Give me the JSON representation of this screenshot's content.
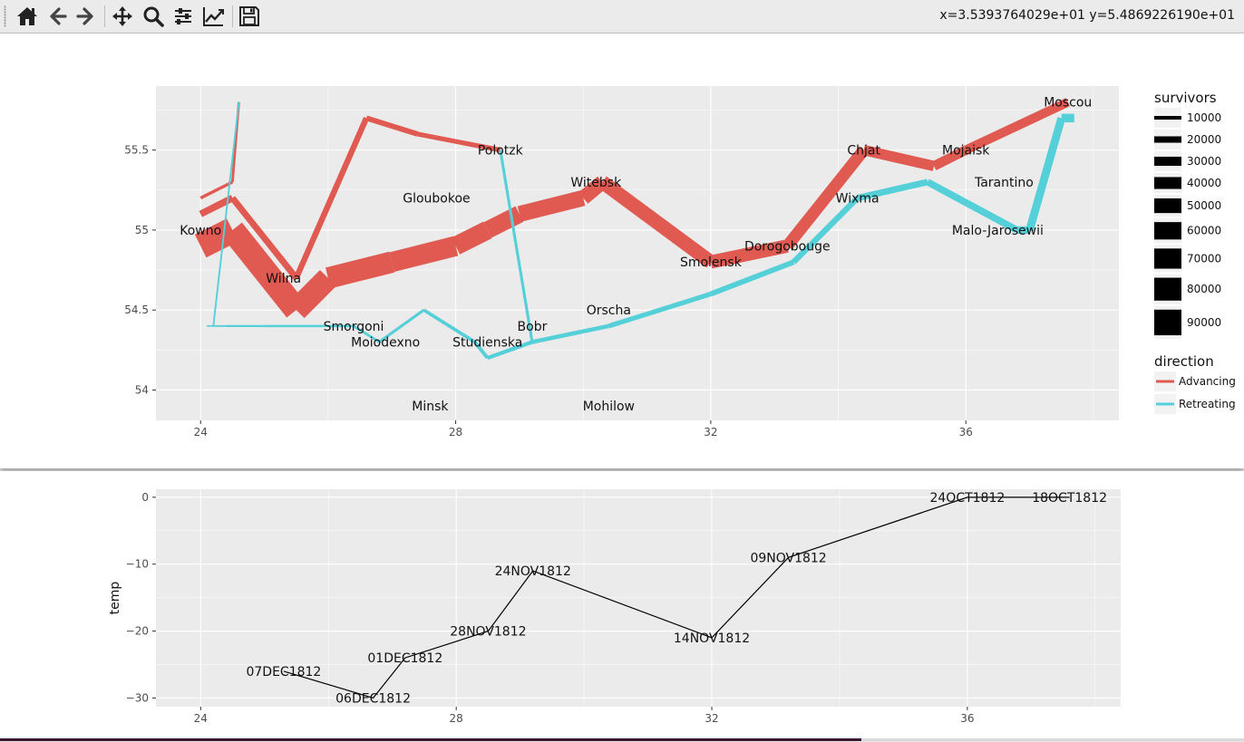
{
  "toolbar": {
    "coords": "x=3.5393764029e+01 y=5.4869226190e+01",
    "buttons": [
      {
        "name": "home-icon",
        "tooltip": "Home"
      },
      {
        "name": "back-icon",
        "tooltip": "Back"
      },
      {
        "name": "forward-icon",
        "tooltip": "Forward"
      },
      {
        "name": "pan-icon",
        "tooltip": "Pan"
      },
      {
        "name": "zoom-icon",
        "tooltip": "Zoom"
      },
      {
        "name": "configure-subplots-icon",
        "tooltip": "Configure subplots"
      },
      {
        "name": "edit-axis-icon",
        "tooltip": "Edit axis"
      },
      {
        "name": "save-icon",
        "tooltip": "Save"
      }
    ]
  },
  "chart_data": [
    {
      "type": "line",
      "title": "",
      "xlabel": "",
      "ylabel": "",
      "xlim": [
        23.3,
        38.4
      ],
      "ylim": [
        53.81,
        55.9
      ],
      "xticks": [
        24,
        28,
        32,
        36
      ],
      "xtick_labels": [
        "24",
        "28",
        "32",
        "36"
      ],
      "yticks": [
        54,
        54.5,
        55,
        55.5
      ],
      "ytick_labels": [
        "54",
        "54.5",
        "55",
        "55.5"
      ],
      "grid": true,
      "legend": {
        "placement": "right",
        "survivors_title": "survivors",
        "survivors": [
          {
            "label": "10000",
            "value": 10000
          },
          {
            "label": "20000",
            "value": 20000
          },
          {
            "label": "30000",
            "value": 30000
          },
          {
            "label": "40000",
            "value": 40000
          },
          {
            "label": "50000",
            "value": 50000
          },
          {
            "label": "60000",
            "value": 60000
          },
          {
            "label": "70000",
            "value": 70000
          },
          {
            "label": "80000",
            "value": 80000
          },
          {
            "label": "90000",
            "value": 90000
          }
        ],
        "direction_title": "direction",
        "direction": [
          {
            "label": "Advancing",
            "color": "#e05a52"
          },
          {
            "label": "Retreating",
            "color": "#55d0d8"
          }
        ]
      },
      "series": [
        {
          "direction": "Advancing",
          "color": "#e05a52",
          "points": [
            [
              24.0,
              54.9,
              90000
            ],
            [
              24.5,
              55.0,
              85000
            ],
            [
              25.5,
              54.5,
              80000
            ],
            [
              26.0,
              54.7,
              75000
            ],
            [
              27.0,
              54.8,
              70000
            ],
            [
              28.0,
              54.9,
              65000
            ],
            [
              28.5,
              55.0,
              60000
            ],
            [
              29.0,
              55.1,
              55000
            ],
            [
              30.0,
              55.2,
              50000
            ],
            [
              30.3,
              55.3,
              48000
            ],
            [
              32.0,
              54.8,
              45000
            ],
            [
              33.2,
              54.9,
              40000
            ],
            [
              34.4,
              55.5,
              35000
            ],
            [
              35.5,
              55.4,
              32000
            ],
            [
              36.0,
              55.5,
              30000
            ],
            [
              37.6,
              55.8,
              28000
            ]
          ]
        },
        {
          "direction": "Retreating",
          "color": "#55d0d8",
          "points": [
            [
              37.7,
              55.7,
              28000
            ],
            [
              37.5,
              55.7,
              26000
            ],
            [
              37.0,
              55.0,
              24000
            ],
            [
              36.8,
              55.0,
              22000
            ],
            [
              35.4,
              55.3,
              20000
            ],
            [
              34.3,
              55.2,
              18000
            ],
            [
              33.3,
              54.8,
              16000
            ],
            [
              32.0,
              54.6,
              14000
            ],
            [
              30.4,
              54.4,
              12000
            ],
            [
              29.2,
              54.3,
              11000
            ],
            [
              28.5,
              54.2,
              10000
            ],
            [
              28.3,
              54.3,
              9000
            ],
            [
              27.5,
              54.5,
              7000
            ],
            [
              26.8,
              54.3,
              6000
            ],
            [
              26.4,
              54.4,
              5000
            ],
            [
              25.0,
              54.4,
              4000
            ],
            [
              24.4,
              54.4,
              3000
            ],
            [
              24.2,
              54.4,
              1000
            ],
            [
              24.1,
              54.4,
              800
            ]
          ]
        },
        {
          "direction": "Advancing",
          "color": "#e05a52",
          "points": [
            [
              24.0,
              55.1,
              22000
            ],
            [
              24.5,
              55.2,
              20000
            ],
            [
              25.5,
              54.7,
              18000
            ],
            [
              26.6,
              55.7,
              16000
            ],
            [
              27.4,
              55.6,
              14000
            ],
            [
              28.7,
              55.5,
              12000
            ]
          ]
        },
        {
          "direction": "Retreating",
          "color": "#55d0d8",
          "points": [
            [
              28.7,
              55.5,
              7000
            ],
            [
              29.2,
              54.3,
              6000
            ],
            [
              28.5,
              54.2,
              5000
            ],
            [
              28.3,
              54.3,
              4000
            ]
          ]
        },
        {
          "direction": "Advancing",
          "color": "#e05a52",
          "points": [
            [
              24.0,
              55.2,
              8000
            ],
            [
              24.5,
              55.3,
              6000
            ],
            [
              24.6,
              55.8,
              4000
            ]
          ]
        },
        {
          "direction": "Retreating",
          "color": "#55d0d8",
          "points": [
            [
              24.6,
              55.8,
              3000
            ],
            [
              24.2,
              54.4,
              2000
            ],
            [
              24.1,
              54.4,
              1000
            ]
          ]
        }
      ],
      "cities": [
        {
          "name": "Kowno",
          "lon": 24.0,
          "lat": 55.0
        },
        {
          "name": "Wilna",
          "lon": 25.3,
          "lat": 54.7
        },
        {
          "name": "Smorgoni",
          "lon": 26.4,
          "lat": 54.4
        },
        {
          "name": "Moiodexno",
          "lon": 26.9,
          "lat": 54.3
        },
        {
          "name": "Gloubokoe",
          "lon": 27.7,
          "lat": 55.2
        },
        {
          "name": "Minsk",
          "lon": 27.6,
          "lat": 53.9
        },
        {
          "name": "Studienska",
          "lon": 28.5,
          "lat": 54.3
        },
        {
          "name": "Polotzk",
          "lon": 28.7,
          "lat": 55.5
        },
        {
          "name": "Bobr",
          "lon": 29.2,
          "lat": 54.4
        },
        {
          "name": "Witebsk",
          "lon": 30.2,
          "lat": 55.3
        },
        {
          "name": "Orscha",
          "lon": 30.4,
          "lat": 54.5
        },
        {
          "name": "Mohilow",
          "lon": 30.4,
          "lat": 53.9
        },
        {
          "name": "Smolensk",
          "lon": 32.0,
          "lat": 54.8
        },
        {
          "name": "Dorogobouge",
          "lon": 33.2,
          "lat": 54.9
        },
        {
          "name": "Wixma",
          "lon": 34.3,
          "lat": 55.2
        },
        {
          "name": "Chjat",
          "lon": 34.4,
          "lat": 55.5
        },
        {
          "name": "Mojaisk",
          "lon": 36.0,
          "lat": 55.5
        },
        {
          "name": "Moscou",
          "lon": 37.6,
          "lat": 55.8
        },
        {
          "name": "Tarantino",
          "lon": 36.6,
          "lat": 55.3
        },
        {
          "name": "Malo-Jarosewii",
          "lon": 36.5,
          "lat": 55.0
        }
      ]
    },
    {
      "type": "line",
      "title": "",
      "xlabel": "",
      "ylabel": "temp",
      "xlim": [
        23.3,
        38.4
      ],
      "ylim": [
        -31.3,
        1.2
      ],
      "xticks": [
        24,
        28,
        32,
        36
      ],
      "xtick_labels": [
        "24",
        "28",
        "32",
        "36"
      ],
      "yticks": [
        0,
        -10,
        -20,
        -30
      ],
      "ytick_labels": [
        "0",
        "−10",
        "−20",
        "−30"
      ],
      "grid": true,
      "series": [
        {
          "name": "",
          "points": [
            {
              "x": 37.6,
              "y": 0,
              "label": "18OCT1812"
            },
            {
              "x": 36.0,
              "y": 0,
              "label": "24OCT1812"
            },
            {
              "x": 33.2,
              "y": -9,
              "label": "09NOV1812"
            },
            {
              "x": 32.0,
              "y": -21,
              "label": "14NOV1812"
            },
            {
              "x": 29.2,
              "y": -11,
              "label": "24NOV1812"
            },
            {
              "x": 28.5,
              "y": -20,
              "label": "28NOV1812"
            },
            {
              "x": 27.2,
              "y": -24,
              "label": "01DEC1812"
            },
            {
              "x": 26.7,
              "y": -30,
              "label": "06DEC1812"
            },
            {
              "x": 25.3,
              "y": -26,
              "label": "07DEC1812"
            }
          ]
        }
      ]
    }
  ]
}
